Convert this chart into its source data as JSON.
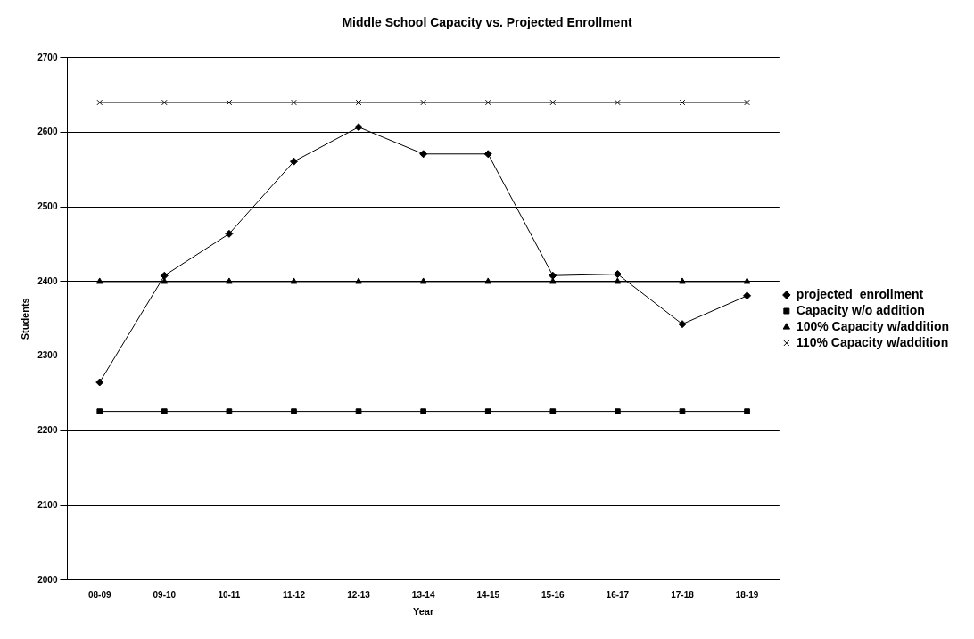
{
  "chart_data": {
    "type": "line",
    "title": "Middle School Capacity vs. Projected Enrollment",
    "xlabel": "Year",
    "ylabel": "Students",
    "categories": [
      "08-09",
      "09-10",
      "10-11",
      "11-12",
      "12-13",
      "13-14",
      "14-15",
      "15-16",
      "16-17",
      "17-18",
      "18-19"
    ],
    "series": [
      {
        "name": "projected  enrollment",
        "color": "#000000",
        "marker": "diamond",
        "values": [
          2265,
          2408,
          2464,
          2561,
          2607,
          2571,
          2571,
          2408,
          2410,
          2343,
          2381
        ]
      },
      {
        "name": "Capacity w/o addition",
        "color": "#000000",
        "marker": "square",
        "values": [
          2226,
          2226,
          2226,
          2226,
          2226,
          2226,
          2226,
          2226,
          2226,
          2226,
          2226
        ]
      },
      {
        "name": "100% Capacity w/addition",
        "color": "#000000",
        "marker": "triangle",
        "values": [
          2400,
          2400,
          2400,
          2400,
          2400,
          2400,
          2400,
          2400,
          2400,
          2400,
          2400
        ]
      },
      {
        "name": "110% Capacity w/addition",
        "color": "#000000",
        "marker": "cross",
        "values": [
          2640,
          2640,
          2640,
          2640,
          2640,
          2640,
          2640,
          2640,
          2640,
          2640,
          2640
        ]
      }
    ],
    "ylim": [
      2000,
      2700
    ],
    "yticks": [
      2000,
      2100,
      2200,
      2300,
      2400,
      2500,
      2600,
      2700
    ],
    "grid": "y",
    "legend": "right"
  }
}
